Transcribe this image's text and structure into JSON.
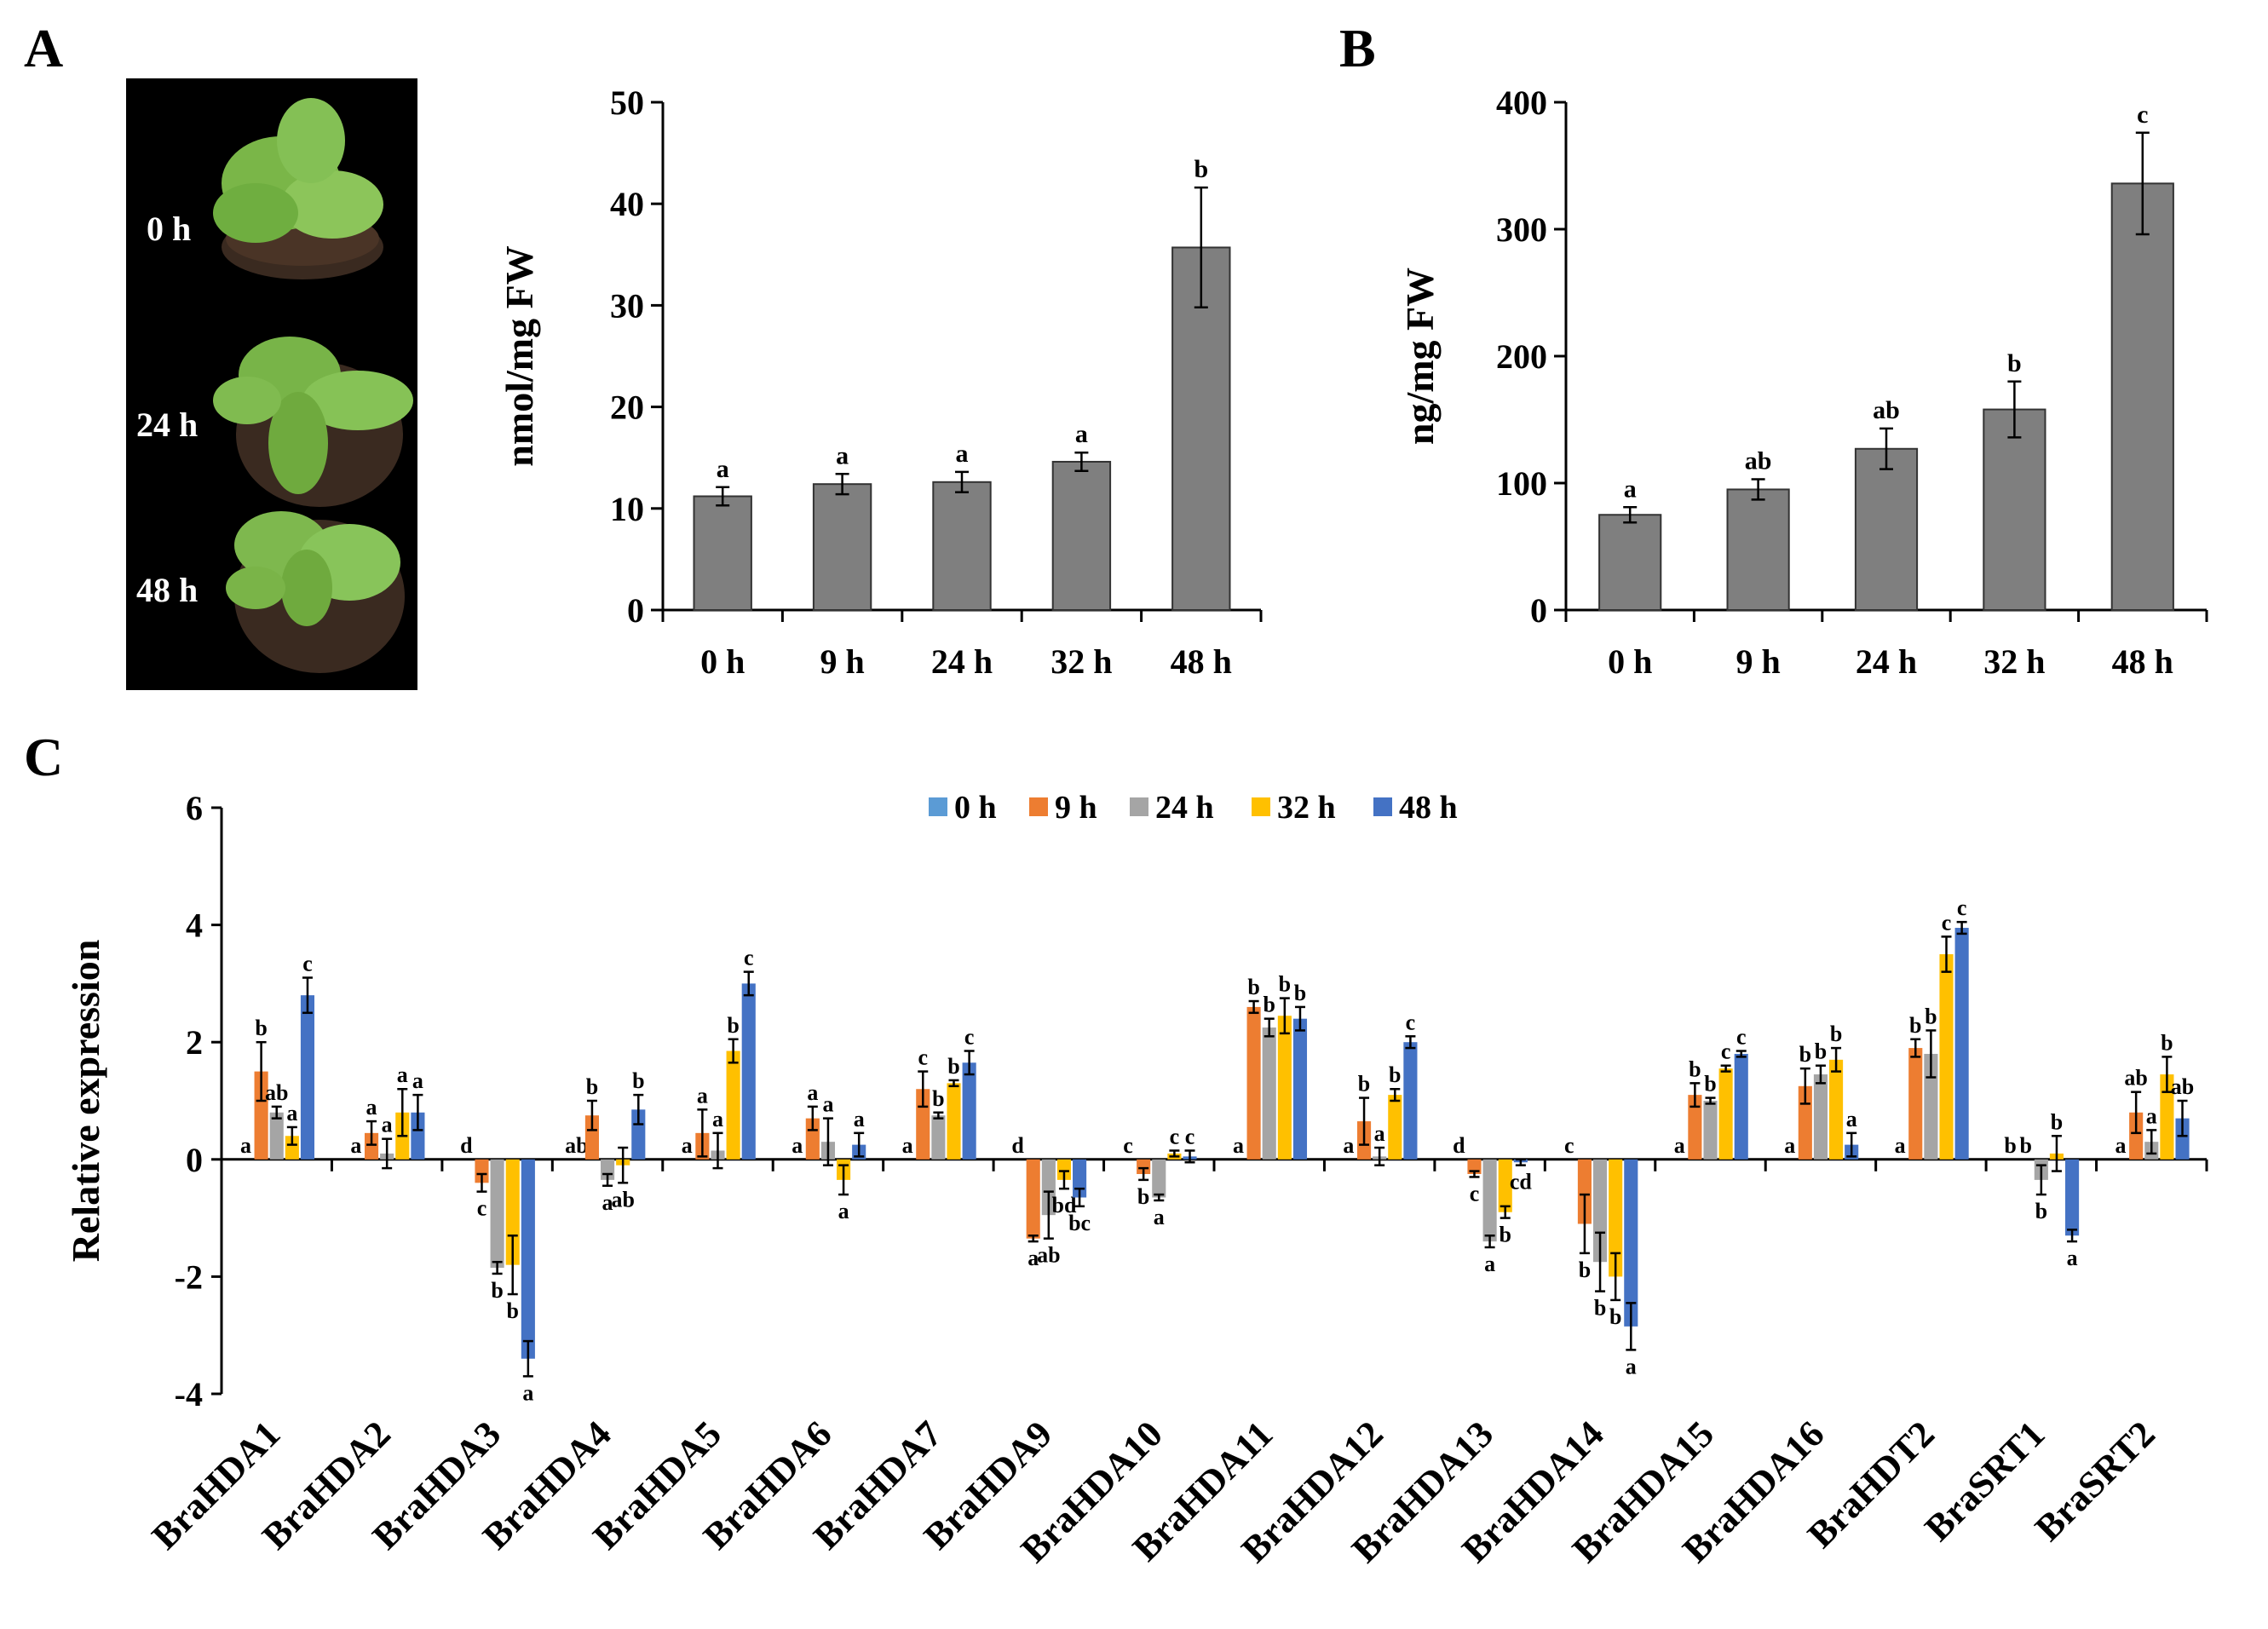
{
  "panels": {
    "A": "A",
    "B": "B",
    "C": "C"
  },
  "photo": {
    "labels": [
      "0 h",
      "24 h",
      "48 h"
    ]
  },
  "chart_data": [
    {
      "id": "A",
      "type": "bar",
      "categories": [
        "0 h",
        "9 h",
        "24 h",
        "32 h",
        "48 h"
      ],
      "values": [
        11.2,
        12.4,
        12.6,
        14.6,
        35.7
      ],
      "errors": [
        0.9,
        1.0,
        1.0,
        0.9,
        5.9
      ],
      "letters": [
        "a",
        "a",
        "a",
        "a",
        "b"
      ],
      "ylabel": "nmol/mg FW",
      "ylim": [
        0,
        50
      ],
      "yticks": [
        0,
        10,
        20,
        30,
        40,
        50
      ],
      "bar_color": "#7f7f7f"
    },
    {
      "id": "B",
      "type": "bar",
      "categories": [
        "0 h",
        "9 h",
        "24 h",
        "32 h",
        "48 h"
      ],
      "values": [
        75,
        95,
        127,
        158,
        336
      ],
      "errors": [
        6,
        8,
        16,
        22,
        40
      ],
      "letters": [
        "a",
        "ab",
        "ab",
        "b",
        "c"
      ],
      "ylabel": "ng/mg FW",
      "ylim": [
        0,
        400
      ],
      "yticks": [
        0,
        100,
        200,
        300,
        400
      ],
      "bar_color": "#7f7f7f"
    },
    {
      "id": "C",
      "type": "bar",
      "ylabel": "Relative expression",
      "ylim": [
        -4,
        6
      ],
      "yticks": [
        -4,
        -2,
        0,
        2,
        4,
        6
      ],
      "legend_placement": "top-center",
      "categories": [
        "BraHDA1",
        "BraHDA2",
        "BraHDA3",
        "BraHDA4",
        "BraHDA5",
        "BraHDA6",
        "BraHDA7",
        "BraHDA9",
        "BraHDA10",
        "BraHDA11",
        "BraHDA12",
        "BraHDA13",
        "BraHDA14",
        "BraHDA15",
        "BraHDA16",
        "BraHDT2",
        "BraSRT1",
        "BraSRT2"
      ],
      "series": [
        {
          "name": "0 h",
          "color": "#5b9bd5",
          "values": [
            0,
            0,
            0,
            0,
            0,
            0,
            0,
            0,
            0,
            0,
            0,
            0,
            0,
            0,
            0,
            0,
            0,
            0
          ],
          "errors": [
            0,
            0,
            0,
            0,
            0,
            0,
            0,
            0,
            0,
            0,
            0,
            0,
            0,
            0,
            0,
            0,
            0,
            0
          ],
          "letters": [
            "a",
            "a",
            "d",
            "ab",
            "a",
            "a",
            "a",
            "d",
            "c",
            "a",
            "a",
            "d",
            "c",
            "a",
            "a",
            "a",
            "b",
            "a"
          ]
        },
        {
          "name": "9 h",
          "color": "#ed7d31",
          "values": [
            1.5,
            0.45,
            -0.4,
            0.75,
            0.45,
            0.7,
            1.2,
            -1.35,
            -0.25,
            2.6,
            0.65,
            -0.25,
            -1.1,
            1.1,
            1.25,
            1.9,
            0,
            0.8
          ],
          "errors": [
            0.5,
            0.2,
            0.15,
            0.25,
            0.4,
            0.2,
            0.3,
            0.05,
            0.1,
            0.1,
            0.4,
            0.05,
            0.5,
            0.2,
            0.3,
            0.15,
            0,
            0.35
          ],
          "letters": [
            "b",
            "a",
            "c",
            "b",
            "a",
            "a",
            "c",
            "a",
            "b",
            "b",
            "b",
            "c",
            "b",
            "b",
            "b",
            "b",
            "b",
            "ab"
          ]
        },
        {
          "name": "24 h",
          "color": "#a5a5a5",
          "values": [
            0.8,
            0.1,
            -1.85,
            -0.35,
            0.15,
            0.3,
            0.75,
            -0.95,
            -0.65,
            2.25,
            0.05,
            -1.4,
            -1.75,
            1.0,
            1.45,
            1.8,
            -0.35,
            0.3
          ],
          "errors": [
            0.1,
            0.25,
            0.1,
            0.1,
            0.3,
            0.4,
            0.05,
            0.4,
            0.05,
            0.15,
            0.15,
            0.1,
            0.5,
            0.05,
            0.15,
            0.4,
            0.25,
            0.2
          ],
          "letters": [
            "ab",
            "a",
            "b",
            "a",
            "a",
            "a",
            "b",
            "ab",
            "a",
            "b",
            "a",
            "a",
            "b",
            "b",
            "b",
            "b",
            "b",
            "a"
          ]
        },
        {
          "name": "32 h",
          "color": "#ffc000",
          "values": [
            0.4,
            0.8,
            -1.8,
            -0.1,
            1.85,
            -0.35,
            1.3,
            -0.35,
            0.1,
            2.45,
            1.1,
            -0.9,
            -2.0,
            1.55,
            1.7,
            3.5,
            0.1,
            1.45
          ],
          "errors": [
            0.15,
            0.4,
            0.5,
            0.3,
            0.2,
            0.25,
            0.05,
            0.15,
            0.05,
            0.3,
            0.1,
            0.1,
            0.4,
            0.05,
            0.2,
            0.3,
            0.3,
            0.3
          ],
          "letters": [
            "a",
            "a",
            "b",
            "ab",
            "b",
            "a",
            "b",
            "bd",
            "c",
            "b",
            "b",
            "b",
            "b",
            "c",
            "b",
            "c",
            "b",
            "b"
          ]
        },
        {
          "name": "48 h",
          "color": "#4472c4",
          "values": [
            2.8,
            0.8,
            -3.4,
            0.85,
            3.0,
            0.25,
            1.65,
            -0.65,
            0.05,
            2.4,
            2.0,
            -0.05,
            -2.85,
            1.8,
            0.25,
            3.95,
            -1.3,
            0.7
          ],
          "errors": [
            0.3,
            0.3,
            0.3,
            0.25,
            0.2,
            0.2,
            0.2,
            0.15,
            0.1,
            0.2,
            0.1,
            0.05,
            0.4,
            0.05,
            0.2,
            0.1,
            0.1,
            0.3
          ],
          "letters": [
            "c",
            "a",
            "a",
            "b",
            "c",
            "a",
            "c",
            "bc",
            "c",
            "b",
            "c",
            "cd",
            "a",
            "c",
            "a",
            "c",
            "a",
            "ab"
          ]
        }
      ]
    }
  ]
}
